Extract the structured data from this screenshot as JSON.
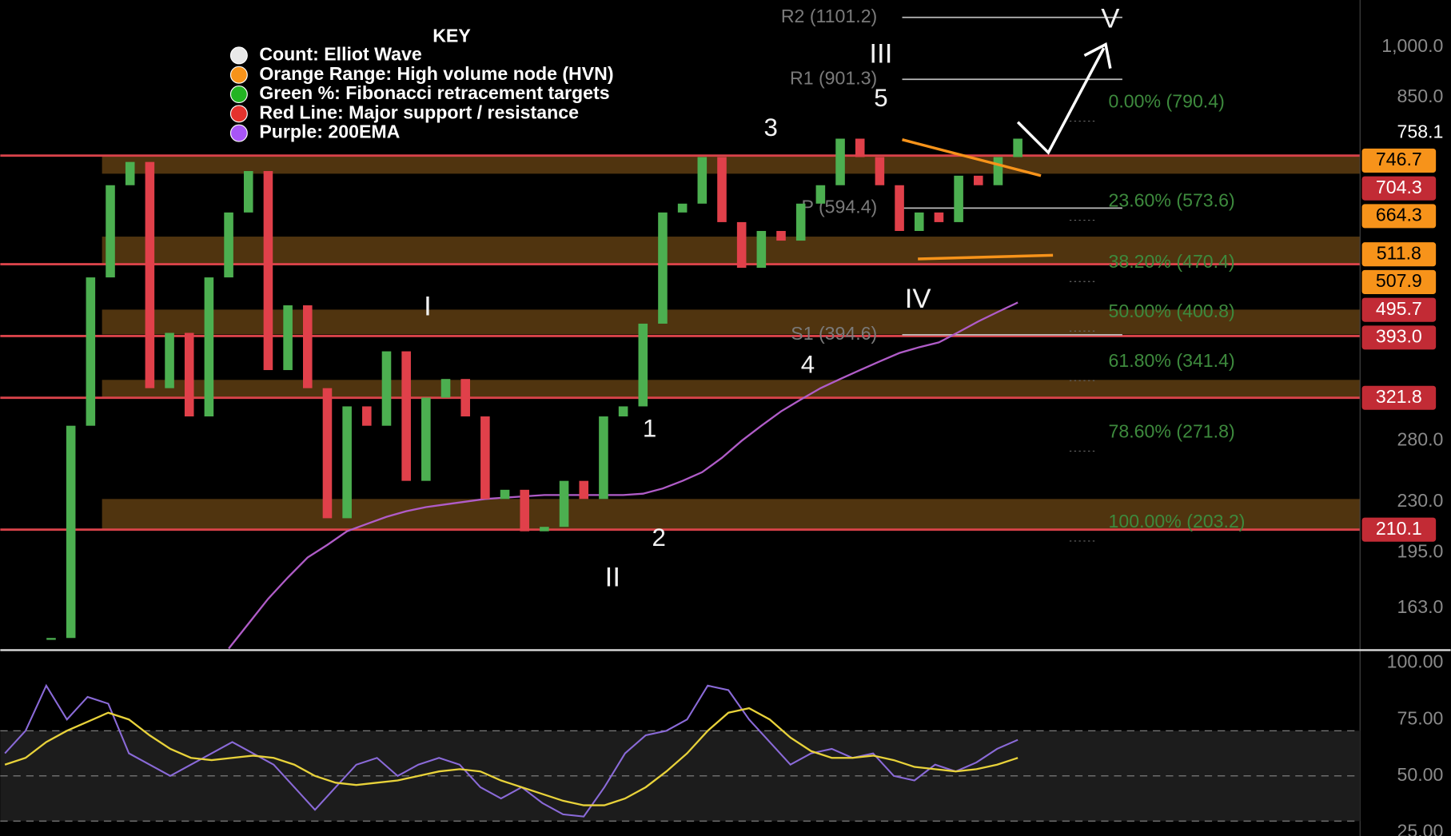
{
  "key": {
    "title": "KEY",
    "items": [
      {
        "label": "Count: Elliot Wave",
        "color": "#e8e8e8"
      },
      {
        "label": "Orange Range: High volume node (HVN)",
        "color": "#f7931a"
      },
      {
        "label": "Green %: Fibonacci retracement targets",
        "color": "#22b422"
      },
      {
        "label": "Red Line: Major support / resistance",
        "color": "#e5322d"
      },
      {
        "label": "Purple: 200EMA",
        "color": "#a855f7"
      }
    ]
  },
  "chart_data": [
    {
      "type": "candlestick",
      "log_scale": true,
      "up_color": "#4caf50",
      "down_color": "#e0404a",
      "values": [
        148,
        294,
        475,
        640,
        690,
        332,
        397,
        303,
        475,
        586,
        670,
        352,
        434,
        332,
        218,
        313,
        294,
        374,
        246,
        322,
        342,
        303,
        232,
        239,
        209,
        212,
        246,
        232,
        303,
        313,
        409,
        586,
        603,
        701,
        568,
        490,
        552,
        535,
        603,
        640,
        744,
        701,
        640,
        552,
        586,
        568,
        660,
        640,
        701,
        744
      ],
      "ylim": [
        142.3,
        1165
      ],
      "yticks": [
        {
          "value": 1000,
          "label": "1,000.0"
        },
        {
          "value": 850,
          "label": "850.0"
        },
        758.1,
        {
          "value": 280,
          "label": "280.0"
        },
        {
          "value": 230,
          "label": "230.0"
        },
        {
          "value": 195,
          "label": "195.0"
        },
        {
          "value": 163,
          "label": "163.0"
        }
      ],
      "support_lines": {
        "color": "#d9434a",
        "values": [
          704.3,
          495.7,
          393.0,
          321.8,
          210.1
        ]
      },
      "hvn_ranges": {
        "color": "#6b4514",
        "values": [
          [
            664.3,
            704.3
          ],
          [
            495.7,
            542
          ],
          [
            395,
            428
          ],
          [
            321.8,
            341
          ],
          [
            210.1,
            232
          ]
        ]
      },
      "ema200": {
        "color": "#b05cc8",
        "values": [
          null,
          null,
          null,
          null,
          null,
          null,
          null,
          null,
          null,
          143,
          155,
          168,
          180,
          192,
          200,
          209,
          214,
          219,
          223,
          226,
          228,
          230,
          232,
          233,
          234,
          235,
          235,
          235,
          235,
          235,
          236,
          240,
          246,
          253,
          265,
          280,
          294,
          308,
          320,
          332,
          342,
          352,
          362,
          372,
          379,
          385,
          398,
          412,
          425,
          438
        ]
      },
      "pivots": [
        {
          "value": 1101.2,
          "label": "R2 (1101.2)"
        },
        {
          "value": 901.3,
          "label": "R1 (901.3)"
        },
        {
          "value": 594.4,
          "label": "P (594.4)"
        },
        {
          "value": 394.6,
          "label": "S1 (394.6)"
        }
      ],
      "fib_levels": [
        {
          "level": 0,
          "label": "0.00% (790.4)"
        },
        {
          "level": 23.6,
          "label": "23.60% (573.6)"
        },
        {
          "level": 38.2,
          "label": "38.20% (470.4)"
        },
        {
          "level": 50,
          "label": "50.00% (400.8)"
        },
        {
          "level": 61.8,
          "label": "61.80% (341.4)"
        },
        {
          "level": 78.6,
          "label": "78.60% (271.8)"
        },
        {
          "level": 100,
          "label": "100.00% (203.2)"
        }
      ],
      "price_tags": [
        {
          "value": 746.7,
          "color": "#f7931a"
        },
        {
          "value": 704.3,
          "color": "#c22b35"
        },
        {
          "value": 664.3,
          "color": "#f7931a"
        },
        {
          "value": 511.8,
          "color": "#f7931a"
        },
        {
          "value": 507.9,
          "color": "#f7931a"
        },
        {
          "value": 495.7,
          "color": "#c22b35"
        },
        {
          "value": 393.0,
          "label": "393.0",
          "color": "#c22b35"
        },
        {
          "value": 321.8,
          "color": "#c22b35"
        },
        {
          "value": 210.1,
          "color": "#c22b35"
        }
      ],
      "wave_labels": [
        "I",
        "II",
        "III",
        "IV",
        "V",
        "1",
        "2",
        "3",
        "4",
        "5"
      ]
    },
    {
      "type": "line",
      "color": "#8a6ad8",
      "ma_color": "#e8d23a",
      "values": [
        60,
        70,
        90,
        75,
        85,
        82,
        60,
        55,
        50,
        55,
        60,
        65,
        60,
        55,
        45,
        35,
        45,
        55,
        58,
        50,
        55,
        58,
        55,
        45,
        40,
        45,
        38,
        33,
        32,
        45,
        60,
        68,
        70,
        75,
        90,
        88,
        75,
        65,
        55,
        60,
        62,
        58,
        60,
        50,
        48,
        55,
        52,
        56,
        62,
        66
      ],
      "ma_values": [
        55,
        58,
        65,
        70,
        74,
        78,
        75,
        68,
        62,
        58,
        57,
        58,
        59,
        58,
        55,
        50,
        47,
        46,
        47,
        48,
        50,
        52,
        53,
        52,
        48,
        45,
        42,
        39,
        37,
        37,
        40,
        45,
        52,
        60,
        70,
        78,
        80,
        75,
        67,
        61,
        58,
        58,
        59,
        57,
        54,
        53,
        52,
        53,
        55,
        58
      ],
      "ylim": [
        23.4,
        104.9
      ],
      "yticks": [
        {
          "value": 100,
          "label": "100.00"
        },
        {
          "value": 75,
          "label": "75.00"
        },
        {
          "value": 50,
          "label": "50.00"
        },
        {
          "value": 25,
          "label": "25.00"
        }
      ],
      "levels": [
        70,
        50,
        30
      ]
    }
  ]
}
